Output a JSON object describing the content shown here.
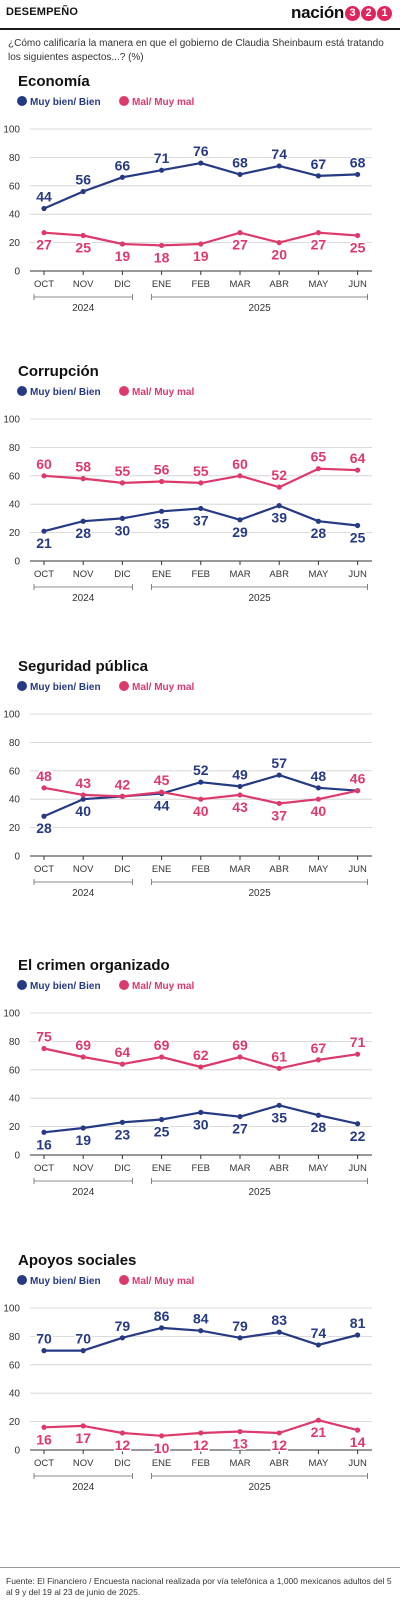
{
  "header": {
    "section": "DESEMPEÑO",
    "brand_text": "nación",
    "brand_digits": [
      "3",
      "2",
      "1"
    ]
  },
  "question": "¿Cómo calificaría la manera en que el gobierno de Claudia Sheinbaum está tratando los siguientes aspectos...? (%)",
  "colors": {
    "positive": "#263a84",
    "negative": "#dd3a6c",
    "axis": "#333333",
    "grid": "#cfcfcf"
  },
  "legend": {
    "positive": "Muy bien/ Bien",
    "negative": "Mal/ Muy mal"
  },
  "chart_data": [
    {
      "type": "line",
      "title": "Economía",
      "categories": [
        "OCT",
        "NOV",
        "DIC",
        "ENE",
        "FEB",
        "MAR",
        "ABR",
        "MAY",
        "JUN"
      ],
      "years": [
        {
          "label": "2024",
          "from": 0,
          "to": 2
        },
        {
          "label": "2025",
          "from": 3,
          "to": 8
        }
      ],
      "ylim": [
        0,
        100
      ],
      "yticks": [
        0,
        20,
        40,
        60,
        80,
        100
      ],
      "grid": true,
      "legend": "top-left",
      "series": [
        {
          "name": "Muy bien/ Bien",
          "values": [
            44,
            56,
            66,
            71,
            76,
            68,
            74,
            67,
            68
          ]
        },
        {
          "name": "Mal/ Muy mal",
          "values": [
            27,
            25,
            19,
            18,
            19,
            27,
            20,
            27,
            25
          ]
        }
      ]
    },
    {
      "type": "line",
      "title": "Corrupción",
      "categories": [
        "OCT",
        "NOV",
        "DIC",
        "ENE",
        "FEB",
        "MAR",
        "ABR",
        "MAY",
        "JUN"
      ],
      "years": [
        {
          "label": "2024",
          "from": 0,
          "to": 2
        },
        {
          "label": "2025",
          "from": 3,
          "to": 8
        }
      ],
      "ylim": [
        0,
        100
      ],
      "yticks": [
        0,
        20,
        40,
        60,
        80,
        100
      ],
      "grid": true,
      "legend": "top-left",
      "series": [
        {
          "name": "Muy bien/ Bien",
          "values": [
            21,
            28,
            30,
            35,
            37,
            29,
            39,
            28,
            25
          ]
        },
        {
          "name": "Mal/ Muy mal",
          "values": [
            60,
            58,
            55,
            56,
            55,
            60,
            52,
            65,
            64
          ]
        }
      ]
    },
    {
      "type": "line",
      "title": "Seguridad pública",
      "categories": [
        "OCT",
        "NOV",
        "DIC",
        "ENE",
        "FEB",
        "MAR",
        "ABR",
        "MAY",
        "JUN"
      ],
      "years": [
        {
          "label": "2024",
          "from": 0,
          "to": 2
        },
        {
          "label": "2025",
          "from": 3,
          "to": 8
        }
      ],
      "ylim": [
        0,
        100
      ],
      "yticks": [
        0,
        20,
        40,
        60,
        80,
        100
      ],
      "grid": true,
      "legend": "top-left",
      "series": [
        {
          "name": "Muy bien/ Bien",
          "values": [
            28,
            40,
            42,
            44,
            52,
            49,
            57,
            48,
            46
          ]
        },
        {
          "name": "Mal/ Muy mal",
          "values": [
            48,
            43,
            42,
            45,
            40,
            43,
            37,
            40,
            46
          ]
        }
      ]
    },
    {
      "type": "line",
      "title": "El crimen organizado",
      "categories": [
        "OCT",
        "NOV",
        "DIC",
        "ENE",
        "FEB",
        "MAR",
        "ABR",
        "MAY",
        "JUN"
      ],
      "years": [
        {
          "label": "2024",
          "from": 0,
          "to": 2
        },
        {
          "label": "2025",
          "from": 3,
          "to": 8
        }
      ],
      "ylim": [
        0,
        100
      ],
      "yticks": [
        0,
        20,
        40,
        60,
        80,
        100
      ],
      "grid": true,
      "legend": "top-left",
      "series": [
        {
          "name": "Muy bien/ Bien",
          "values": [
            16,
            19,
            23,
            25,
            30,
            27,
            35,
            28,
            22
          ]
        },
        {
          "name": "Mal/ Muy mal",
          "values": [
            75,
            69,
            64,
            69,
            62,
            69,
            61,
            67,
            71
          ]
        }
      ]
    },
    {
      "type": "line",
      "title": "Apoyos sociales",
      "categories": [
        "OCT",
        "NOV",
        "DIC",
        "ENE",
        "FEB",
        "MAR",
        "ABR",
        "MAY",
        "JUN"
      ],
      "years": [
        {
          "label": "2024",
          "from": 0,
          "to": 2
        },
        {
          "label": "2025",
          "from": 3,
          "to": 8
        }
      ],
      "ylim": [
        0,
        100
      ],
      "yticks": [
        0,
        20,
        40,
        60,
        80,
        100
      ],
      "grid": true,
      "legend": "top-left",
      "series": [
        {
          "name": "Muy bien/ Bien",
          "values": [
            70,
            70,
            79,
            86,
            84,
            79,
            83,
            74,
            81
          ]
        },
        {
          "name": "Mal/ Muy mal",
          "values": [
            16,
            17,
            12,
            10,
            12,
            13,
            12,
            21,
            14
          ]
        }
      ]
    }
  ],
  "footer": {
    "source": "Fuente: El Financiero / Encuesta nacional realizada por vía telefónica a 1,000 mexicanos adultos del 5 al 9 y del 19 al 23 de junio de 2025."
  }
}
